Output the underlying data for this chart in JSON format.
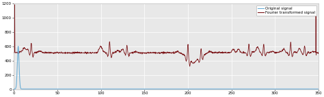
{
  "title": "",
  "xlabel": "",
  "ylabel": "",
  "xlim": [
    0,
    350
  ],
  "ylim": [
    0,
    1200
  ],
  "yticks": [
    0,
    200,
    400,
    600,
    800,
    1000,
    1200
  ],
  "xticks": [
    0,
    50,
    100,
    150,
    200,
    250,
    300,
    350
  ],
  "original_color": "#6baed6",
  "fourier_color": "#7b1518",
  "legend_labels": [
    "Original signal",
    "Fourier transformed signal"
  ],
  "background_color": "#e8e8e8",
  "figsize": [
    4.74,
    1.42
  ],
  "dpi": 100
}
